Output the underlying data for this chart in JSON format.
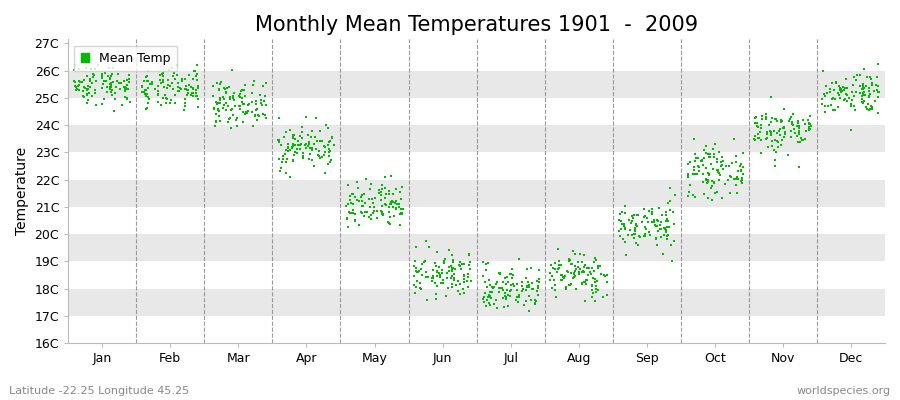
{
  "title": "Monthly Mean Temperatures 1901  -  2009",
  "ylabel": "Temperature",
  "xlabel": "",
  "bottom_left_text": "Latitude -22.25 Longitude 45.25",
  "bottom_right_text": "worldspecies.org",
  "legend_label": "Mean Temp",
  "dot_color": "#00bb00",
  "background_color": "#ffffff",
  "band_color": "#e8e8e8",
  "months": [
    "Jan",
    "Feb",
    "Mar",
    "Apr",
    "May",
    "Jun",
    "Jul",
    "Aug",
    "Sep",
    "Oct",
    "Nov",
    "Dec"
  ],
  "mean_temps": [
    25.5,
    25.3,
    24.8,
    23.2,
    21.0,
    18.5,
    18.0,
    18.5,
    20.3,
    22.3,
    23.8,
    25.2
  ],
  "std_temps": [
    0.38,
    0.38,
    0.4,
    0.42,
    0.45,
    0.42,
    0.42,
    0.42,
    0.44,
    0.44,
    0.44,
    0.4
  ],
  "ylim_min": 16,
  "ylim_max": 27,
  "n_years": 109,
  "seed": 42,
  "title_fontsize": 15,
  "axis_fontsize": 10,
  "tick_fontsize": 9,
  "dot_size": 4
}
